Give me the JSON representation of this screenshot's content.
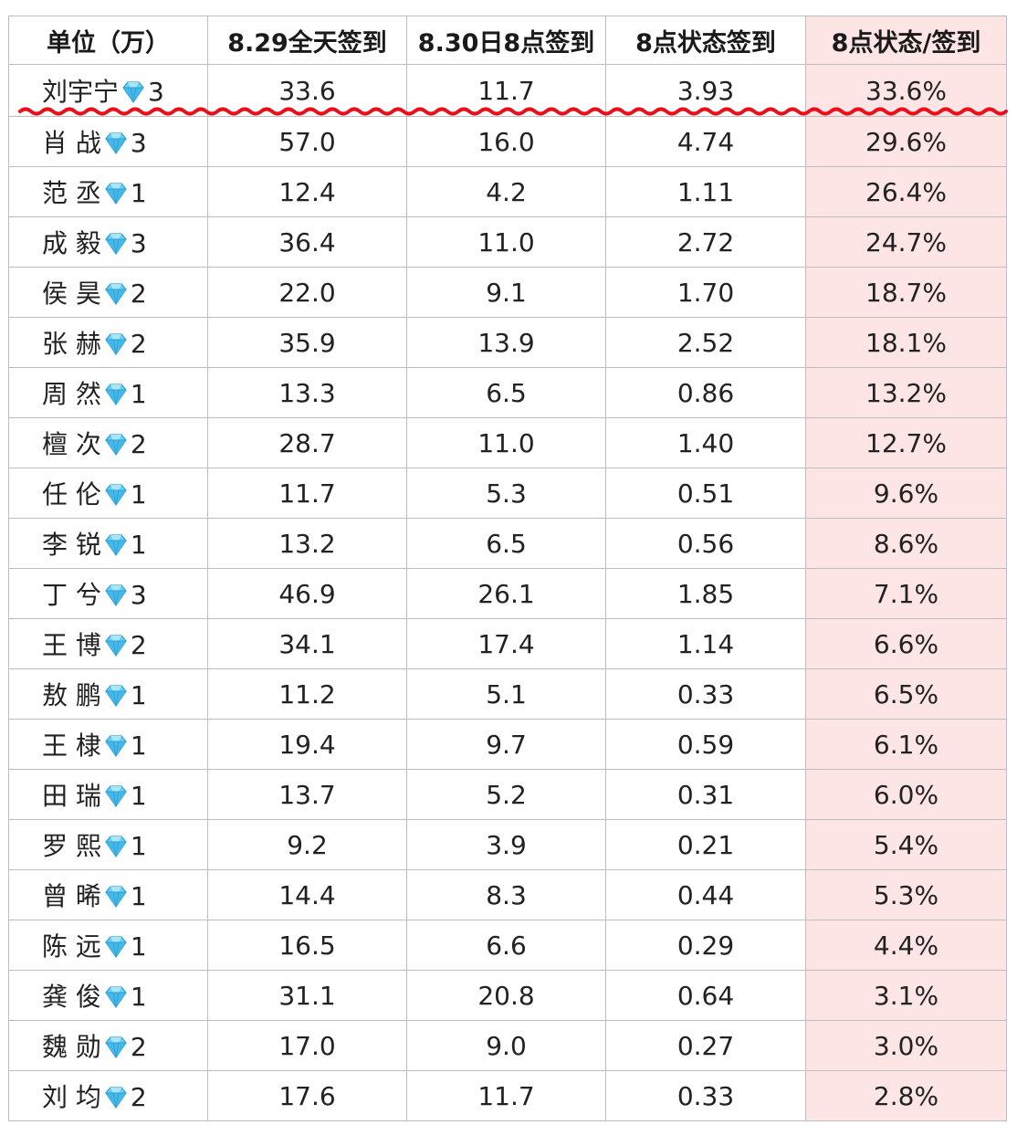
{
  "table": {
    "headers": [
      "单位（万）",
      "8.29全天签到",
      "8.30日8点签到",
      "8点状态签到",
      "8点状态/签到"
    ],
    "rows": [
      {
        "name": "刘宇宁",
        "level": "3",
        "c1": "33.6",
        "c2": "11.7",
        "c3": "3.93",
        "c4": "33.6%"
      },
      {
        "name": "肖 战",
        "level": "3",
        "c1": "57.0",
        "c2": "16.0",
        "c3": "4.74",
        "c4": "29.6%"
      },
      {
        "name": "范 丞",
        "level": "1",
        "c1": "12.4",
        "c2": "4.2",
        "c3": "1.11",
        "c4": "26.4%"
      },
      {
        "name": "成 毅",
        "level": "3",
        "c1": "36.4",
        "c2": "11.0",
        "c3": "2.72",
        "c4": "24.7%"
      },
      {
        "name": "侯 昊",
        "level": "2",
        "c1": "22.0",
        "c2": "9.1",
        "c3": "1.70",
        "c4": "18.7%"
      },
      {
        "name": "张 赫",
        "level": "2",
        "c1": "35.9",
        "c2": "13.9",
        "c3": "2.52",
        "c4": "18.1%"
      },
      {
        "name": "周 然",
        "level": "1",
        "c1": "13.3",
        "c2": "6.5",
        "c3": "0.86",
        "c4": "13.2%"
      },
      {
        "name": "檀 次",
        "level": "2",
        "c1": "28.7",
        "c2": "11.0",
        "c3": "1.40",
        "c4": "12.7%"
      },
      {
        "name": "任 伦",
        "level": "1",
        "c1": "11.7",
        "c2": "5.3",
        "c3": "0.51",
        "c4": "9.6%"
      },
      {
        "name": "李 锐",
        "level": "1",
        "c1": "13.2",
        "c2": "6.5",
        "c3": "0.56",
        "c4": "8.6%"
      },
      {
        "name": "丁 兮",
        "level": "3",
        "c1": "46.9",
        "c2": "26.1",
        "c3": "1.85",
        "c4": "7.1%"
      },
      {
        "name": "王 博",
        "level": "2",
        "c1": "34.1",
        "c2": "17.4",
        "c3": "1.14",
        "c4": "6.6%"
      },
      {
        "name": "敖 鹏",
        "level": "1",
        "c1": "11.2",
        "c2": "5.1",
        "c3": "0.33",
        "c4": "6.5%"
      },
      {
        "name": "王 棣",
        "level": "1",
        "c1": "19.4",
        "c2": "9.7",
        "c3": "0.59",
        "c4": "6.1%"
      },
      {
        "name": "田 瑞",
        "level": "1",
        "c1": "13.7",
        "c2": "5.2",
        "c3": "0.31",
        "c4": "6.0%"
      },
      {
        "name": "罗 熙",
        "level": "1",
        "c1": "9.2",
        "c2": "3.9",
        "c3": "0.21",
        "c4": "5.4%"
      },
      {
        "name": "曾 晞",
        "level": "1",
        "c1": "14.4",
        "c2": "8.3",
        "c3": "0.44",
        "c4": "5.3%"
      },
      {
        "name": "陈 远",
        "level": "1",
        "c1": "16.5",
        "c2": "6.6",
        "c3": "0.29",
        "c4": "4.4%"
      },
      {
        "name": "龚 俊",
        "level": "1",
        "c1": "31.1",
        "c2": "20.8",
        "c3": "0.64",
        "c4": "3.1%"
      },
      {
        "name": "魏 勋",
        "level": "2",
        "c1": "17.0",
        "c2": "9.0",
        "c3": "0.27",
        "c4": "3.0%"
      },
      {
        "name": "刘 均",
        "level": "2",
        "c1": "17.6",
        "c2": "11.7",
        "c3": "0.33",
        "c4": "2.8%"
      }
    ]
  },
  "icons": {
    "level_icon": "diamond-icon"
  },
  "colors": {
    "highlight_column": "#fde5e5",
    "squiggle": "#e8101a",
    "diamond": "#59c5f0",
    "grid": "#bdbdbd"
  }
}
